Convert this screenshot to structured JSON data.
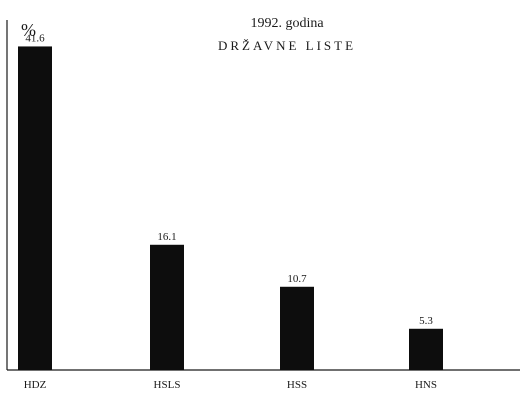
{
  "chart_data": {
    "type": "bar",
    "title": "1992. godina",
    "subtitle": "DRŽAVNE LISTE",
    "ylabel": "%",
    "xlabel": "",
    "categories": [
      "HDZ",
      "HSLS",
      "HSS",
      "HNS"
    ],
    "values": [
      41.6,
      16.1,
      10.7,
      5.3
    ],
    "value_labels": [
      "41.6",
      "16.1",
      "10.7",
      "5.3"
    ],
    "ylim": [
      0,
      45
    ],
    "grid": false,
    "legend": "none",
    "bar_color": "#0d0d0d"
  }
}
